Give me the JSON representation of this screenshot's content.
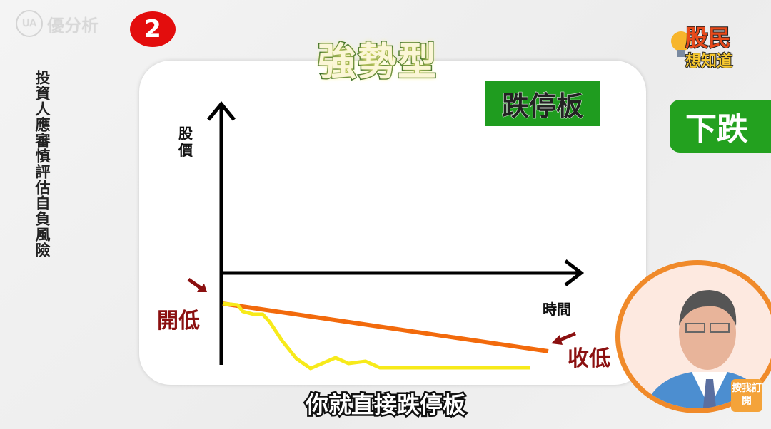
{
  "watermark": {
    "logo_text": "UA",
    "brand": "優分析"
  },
  "step_badge": "2",
  "disclaimer": "投資人應審慎評估自負風險",
  "show_logo": {
    "line1": "股民",
    "line2": "想知道"
  },
  "title": "強勢型",
  "pattern_tag": "跌停板",
  "side_tag": "下跌",
  "diagram": {
    "y_axis_label": "股價",
    "x_axis_label": "時間",
    "open_label": "開低",
    "close_label": "收低",
    "colors": {
      "trend_line": "#f26a0c",
      "price_line": "#f7ea1a",
      "arrow": "#8b1010",
      "axes": "#000000"
    }
  },
  "subtitle": "你就直接跌停板",
  "subscribe_button": "按我訂閱"
}
